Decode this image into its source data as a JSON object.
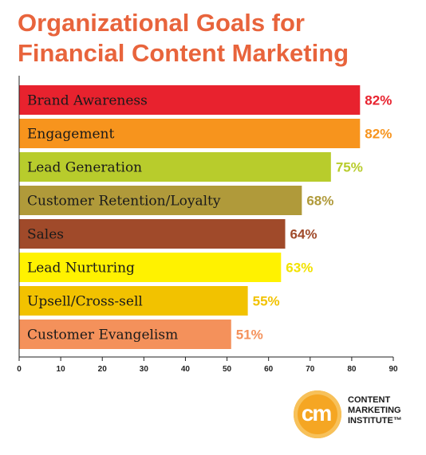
{
  "title_lines": [
    "Organizational Goals for",
    "Financial Content Marketing"
  ],
  "chart_data": {
    "type": "bar",
    "orientation": "horizontal",
    "title": "Organizational Goals for Financial Content Marketing",
    "categories": [
      "Brand Awareness",
      "Engagement",
      "Lead Generation",
      "Customer Retention/Loyalty",
      "Sales",
      "Lead Nurturing",
      "Upsell/Cross-sell",
      "Customer Evangelism"
    ],
    "values": [
      82,
      82,
      75,
      68,
      64,
      63,
      55,
      51
    ],
    "value_labels": [
      "82%",
      "82%",
      "75%",
      "68%",
      "64%",
      "63%",
      "55%",
      "51%"
    ],
    "colors": [
      "#e8222e",
      "#f7941d",
      "#b8cc2c",
      "#b09a3a",
      "#a04a2a",
      "#fff200",
      "#f2c200",
      "#f4915b"
    ],
    "value_label_colors": [
      "#e8222e",
      "#f7941d",
      "#b8cc2c",
      "#b09a3a",
      "#a04a2a",
      "#f2e200",
      "#f2c200",
      "#f4915b"
    ],
    "xlim": [
      0,
      90
    ],
    "xticks": [
      0,
      10,
      20,
      30,
      40,
      50,
      60,
      70,
      80,
      90
    ],
    "xlabel": "",
    "ylabel": "",
    "grid": false
  },
  "logo": {
    "mark": "cm",
    "lines": [
      "CONTENT",
      "MARKETING",
      "INSTITUTE™"
    ],
    "color": "#f5a623"
  }
}
